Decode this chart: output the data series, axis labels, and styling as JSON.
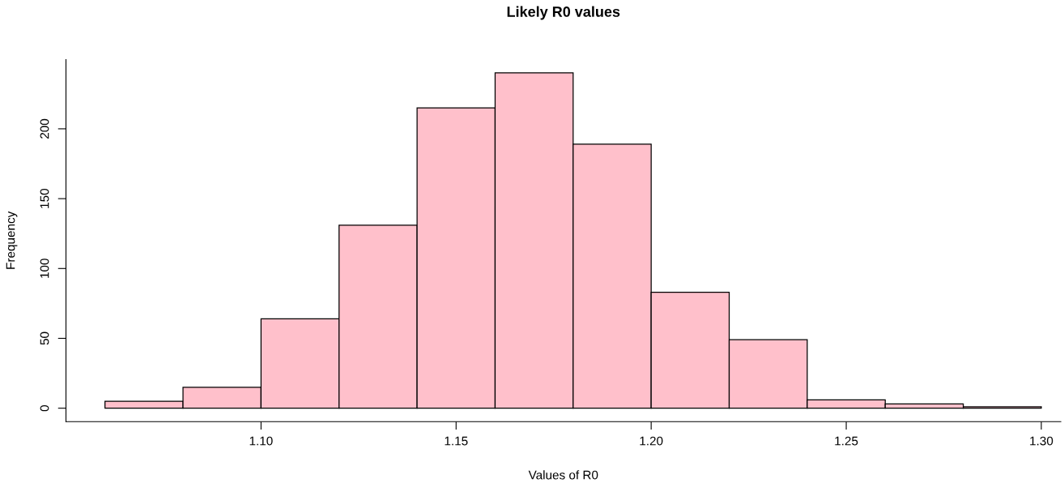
{
  "chart_data": {
    "type": "histogram",
    "title": "Likely R0 values",
    "xlabel": "Values of R0",
    "ylabel": "Frequency",
    "bins": [
      1.06,
      1.08,
      1.1,
      1.12,
      1.14,
      1.16,
      1.18,
      1.2,
      1.22,
      1.24,
      1.26,
      1.28,
      1.3
    ],
    "values": [
      5,
      15,
      64,
      131,
      215,
      240,
      189,
      83,
      49,
      6,
      3,
      1
    ],
    "color": "#ffc0cb",
    "xlim": [
      1.05,
      1.305
    ],
    "ylim": [
      -9.6,
      249.6
    ],
    "xticks": [
      {
        "value": 1.1,
        "label": "1.10"
      },
      {
        "value": 1.15,
        "label": "1.15"
      },
      {
        "value": 1.2,
        "label": "1.20"
      },
      {
        "value": 1.25,
        "label": "1.25"
      },
      {
        "value": 1.3,
        "label": "1.30"
      }
    ],
    "yticks": [
      0,
      50,
      100,
      150,
      200
    ],
    "grid": false,
    "legend": false
  }
}
